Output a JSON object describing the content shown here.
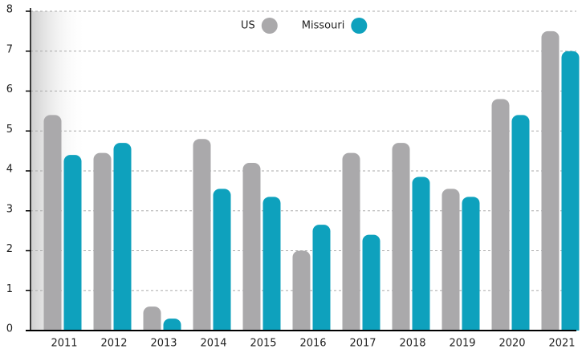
{
  "chart_data": {
    "type": "bar",
    "categories": [
      "2011",
      "2012",
      "2013",
      "2014",
      "2015",
      "2016",
      "2017",
      "2018",
      "2019",
      "2020",
      "2021"
    ],
    "series": [
      {
        "name": "US",
        "color": "#aaa9ab",
        "values": [
          5.4,
          4.45,
          0.6,
          4.8,
          4.2,
          2.0,
          4.45,
          4.7,
          3.55,
          5.8,
          7.5
        ]
      },
      {
        "name": "Missouri",
        "color": "#0ea1bd",
        "values": [
          4.4,
          4.7,
          0.3,
          3.55,
          3.35,
          2.65,
          2.4,
          3.85,
          3.35,
          5.4,
          7.0
        ]
      }
    ],
    "ylim": [
      0,
      8
    ],
    "yticks": [
      0,
      1,
      2,
      3,
      4,
      5,
      6,
      7,
      8
    ],
    "grid": true,
    "legend": "top"
  }
}
